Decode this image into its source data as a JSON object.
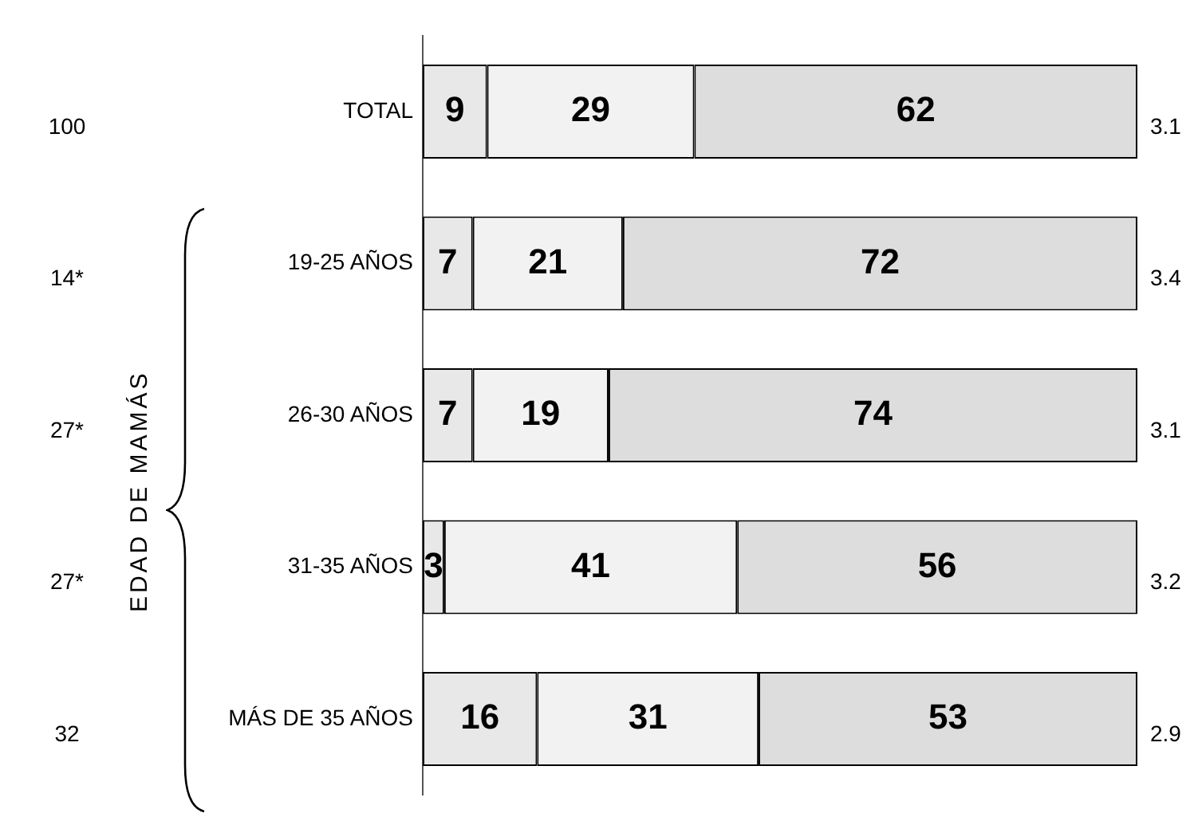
{
  "chart_data": {
    "type": "bar",
    "orientation": "horizontal",
    "stacked": true,
    "categories": [
      "TOTAL",
      "19-25 AÑOS",
      "26-30 AÑOS",
      "31-35 AÑOS",
      "MÁS DE 35 AÑOS"
    ],
    "series": [
      {
        "color": "#e8e8e8",
        "values": [
          9,
          7,
          7,
          3,
          16
        ]
      },
      {
        "color": "#f2f2f2",
        "values": [
          29,
          21,
          19,
          41,
          31
        ]
      },
      {
        "color": "#dddddd",
        "values": [
          62,
          72,
          74,
          56,
          53
        ]
      }
    ],
    "xlim": [
      0,
      100
    ],
    "tick_labels": "y",
    "grid": false,
    "legend": false,
    "data_labels": true,
    "ylabel": "EDAD DE MAMÁS",
    "annotations": [
      "100",
      "14*",
      "27*",
      "27*",
      "32",
      "3.1",
      "3.4",
      "3.1",
      "3.2",
      "2.9"
    ]
  }
}
